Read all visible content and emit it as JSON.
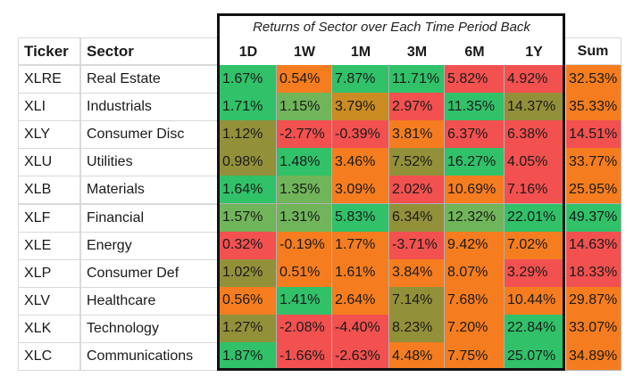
{
  "title": "Returns of Sector over Each Time Period Back",
  "headers": {
    "ticker": "Ticker",
    "sector": "Sector",
    "sum": "Sum"
  },
  "periods": [
    "1D",
    "1W",
    "1M",
    "3M",
    "6M",
    "1Y"
  ],
  "colors": {
    "green": "#31c169",
    "olive": "#93903a",
    "bronze": "#ca8c23",
    "orange": "#f57d1f",
    "red": "#f25150",
    "lime": "#71b55a"
  },
  "rows": [
    {
      "ticker": "XLRE",
      "sector": "Real Estate",
      "values": [
        "1.67%",
        "0.54%",
        "7.87%",
        "11.71%",
        "5.82%",
        "4.92%"
      ],
      "cell_colors": [
        "green",
        "orange",
        "green",
        "green",
        "red",
        "red"
      ],
      "sum": "32.53%",
      "sum_color": "orange"
    },
    {
      "ticker": "XLI",
      "sector": "Industrials",
      "values": [
        "1.71%",
        "1.15%",
        "3.79%",
        "2.97%",
        "11.35%",
        "14.37%"
      ],
      "cell_colors": [
        "green",
        "lime",
        "bronze",
        "red",
        "green",
        "olive"
      ],
      "sum": "35.33%",
      "sum_color": "orange"
    },
    {
      "ticker": "XLY",
      "sector": "Consumer Disc",
      "values": [
        "1.12%",
        "-2.77%",
        "-0.39%",
        "3.81%",
        "6.37%",
        "6.38%"
      ],
      "cell_colors": [
        "olive",
        "red",
        "red",
        "orange",
        "red",
        "red"
      ],
      "sum": "14.51%",
      "sum_color": "red"
    },
    {
      "ticker": "XLU",
      "sector": "Utilities",
      "values": [
        "0.98%",
        "1.48%",
        "3.46%",
        "7.52%",
        "16.27%",
        "4.05%"
      ],
      "cell_colors": [
        "olive",
        "green",
        "orange",
        "olive",
        "green",
        "red"
      ],
      "sum": "33.77%",
      "sum_color": "orange"
    },
    {
      "ticker": "XLB",
      "sector": "Materials",
      "values": [
        "1.64%",
        "1.35%",
        "3.09%",
        "2.02%",
        "10.69%",
        "7.16%"
      ],
      "cell_colors": [
        "green",
        "lime",
        "orange",
        "red",
        "orange",
        "red"
      ],
      "sum": "25.95%",
      "sum_color": "orange"
    },
    {
      "ticker": "XLF",
      "sector": "Financial",
      "values": [
        "1.57%",
        "1.31%",
        "5.83%",
        "6.34%",
        "12.32%",
        "22.01%"
      ],
      "cell_colors": [
        "lime",
        "lime",
        "green",
        "olive",
        "lime",
        "green"
      ],
      "sum": "49.37%",
      "sum_color": "green"
    },
    {
      "ticker": "XLE",
      "sector": "Energy",
      "values": [
        "0.32%",
        "-0.19%",
        "1.77%",
        "-3.71%",
        "9.42%",
        "7.02%"
      ],
      "cell_colors": [
        "red",
        "orange",
        "orange",
        "red",
        "orange",
        "orange"
      ],
      "sum": "14.63%",
      "sum_color": "red"
    },
    {
      "ticker": "XLP",
      "sector": "Consumer Def",
      "values": [
        "1.02%",
        "0.51%",
        "1.61%",
        "3.84%",
        "8.07%",
        "3.29%"
      ],
      "cell_colors": [
        "olive",
        "orange",
        "orange",
        "orange",
        "orange",
        "red"
      ],
      "sum": "18.33%",
      "sum_color": "red"
    },
    {
      "ticker": "XLV",
      "sector": "Healthcare",
      "values": [
        "0.56%",
        "1.41%",
        "2.64%",
        "7.14%",
        "7.68%",
        "10.44%"
      ],
      "cell_colors": [
        "orange",
        "green",
        "orange",
        "olive",
        "orange",
        "orange"
      ],
      "sum": "29.87%",
      "sum_color": "orange"
    },
    {
      "ticker": "XLK",
      "sector": "Technology",
      "values": [
        "1.27%",
        "-2.08%",
        "-4.40%",
        "8.23%",
        "7.20%",
        "22.84%"
      ],
      "cell_colors": [
        "olive",
        "red",
        "red",
        "olive",
        "orange",
        "green"
      ],
      "sum": "33.07%",
      "sum_color": "orange"
    },
    {
      "ticker": "XLC",
      "sector": "Communications",
      "values": [
        "1.87%",
        "-1.66%",
        "-2.63%",
        "4.48%",
        "7.75%",
        "25.07%"
      ],
      "cell_colors": [
        "green",
        "red",
        "red",
        "orange",
        "orange",
        "green"
      ],
      "sum": "34.89%",
      "sum_color": "orange"
    }
  ]
}
